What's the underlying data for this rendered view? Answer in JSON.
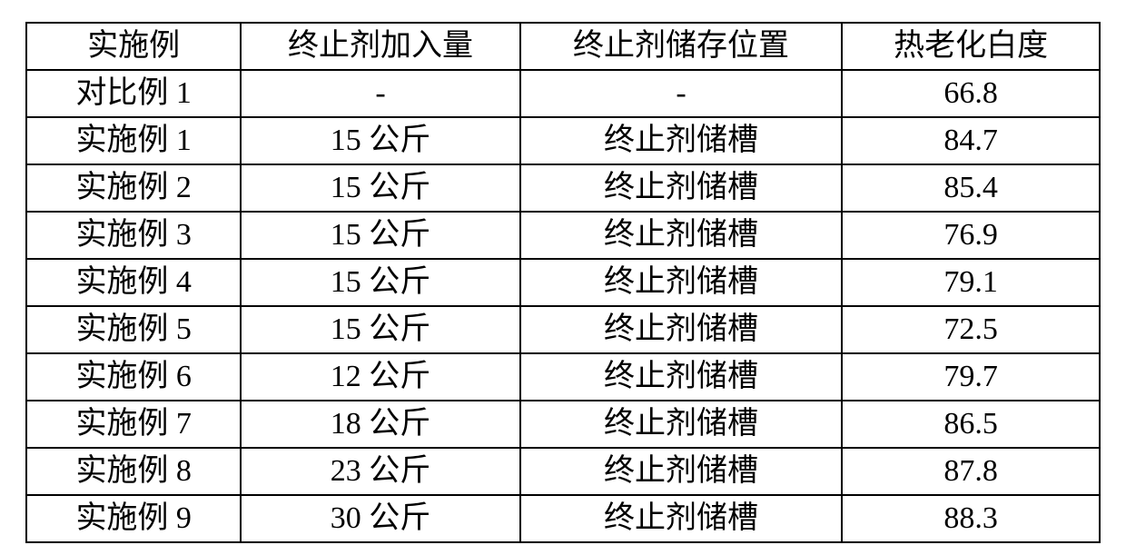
{
  "table": {
    "type": "table",
    "columns": [
      "实施例",
      "终止剂加入量",
      "终止剂储存位置",
      "热老化白度"
    ],
    "col_widths_pct": [
      20,
      26,
      30,
      24
    ],
    "rows": [
      [
        "对比例 1",
        "-",
        "-",
        "66.8"
      ],
      [
        "实施例 1",
        "15 公斤",
        "终止剂储槽",
        "84.7"
      ],
      [
        "实施例 2",
        "15 公斤",
        "终止剂储槽",
        "85.4"
      ],
      [
        "实施例 3",
        "15 公斤",
        "终止剂储槽",
        "76.9"
      ],
      [
        "实施例 4",
        "15 公斤",
        "终止剂储槽",
        "79.1"
      ],
      [
        "实施例 5",
        "15 公斤",
        "终止剂储槽",
        "72.5"
      ],
      [
        "实施例 6",
        "12 公斤",
        "终止剂储槽",
        "79.7"
      ],
      [
        "实施例 7",
        "18 公斤",
        "终止剂储槽",
        "86.5"
      ],
      [
        "实施例 8",
        "23 公斤",
        "终止剂储槽",
        "87.8"
      ],
      [
        "实施例 9",
        "30 公斤",
        "终止剂储槽",
        "88.3"
      ]
    ],
    "border_color": "#000000",
    "background_color": "#ffffff",
    "font_size_pt": 26,
    "font_family": "KaiTi",
    "text_align": "center"
  }
}
